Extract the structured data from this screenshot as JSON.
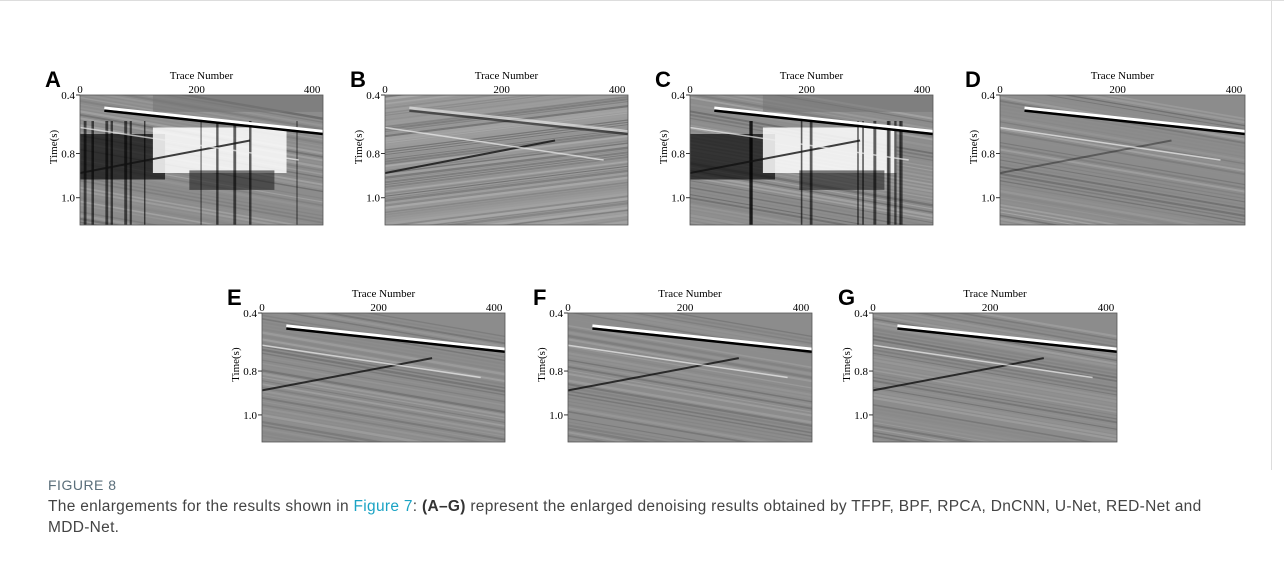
{
  "figure": {
    "panels": [
      {
        "label": "A",
        "x_axis_title": "Trace Number",
        "x_ticks": [
          "0",
          "200",
          "400"
        ],
        "y_axis_title": "Time(s)",
        "y_ticks": [
          "0.4",
          "0.8",
          "1.0"
        ]
      },
      {
        "label": "B",
        "x_axis_title": "Trace Number",
        "x_ticks": [
          "0",
          "200",
          "400"
        ],
        "y_axis_title": "Time(s)",
        "y_ticks": [
          "0.4",
          "0.8",
          "1.0"
        ]
      },
      {
        "label": "C",
        "x_axis_title": "Trace Number",
        "x_ticks": [
          "0",
          "200",
          "400"
        ],
        "y_axis_title": "Time(s)",
        "y_ticks": [
          "0.4",
          "0.8",
          "1.0"
        ]
      },
      {
        "label": "D",
        "x_axis_title": "Trace Number",
        "x_ticks": [
          "0",
          "200",
          "400"
        ],
        "y_axis_title": "Time(s)",
        "y_ticks": [
          "0.4",
          "0.8",
          "1.0"
        ]
      },
      {
        "label": "E",
        "x_axis_title": "Trace Number",
        "x_ticks": [
          "0",
          "200",
          "400"
        ],
        "y_axis_title": "Time(s)",
        "y_ticks": [
          "0.4",
          "0.8",
          "1.0"
        ]
      },
      {
        "label": "F",
        "x_axis_title": "Trace Number",
        "x_ticks": [
          "0",
          "200",
          "400"
        ],
        "y_axis_title": "Time(s)",
        "y_ticks": [
          "0.4",
          "0.8",
          "1.0"
        ]
      },
      {
        "label": "G",
        "x_axis_title": "Trace Number",
        "x_ticks": [
          "0",
          "200",
          "400"
        ],
        "y_axis_title": "Time(s)",
        "y_ticks": [
          "0.4",
          "0.8",
          "1.0"
        ]
      }
    ],
    "caption": {
      "label": "FIGURE 8",
      "text_before_link": "The enlargements for the results shown in ",
      "link": "Figure 7",
      "text_after_link": ": ",
      "bold": "(A–G)",
      "text_end": " represent the enlarged denoising results obtained by TFPF, BPF, RPCA, DnCNN, U-Net, RED-Net and MDD-Net."
    }
  }
}
